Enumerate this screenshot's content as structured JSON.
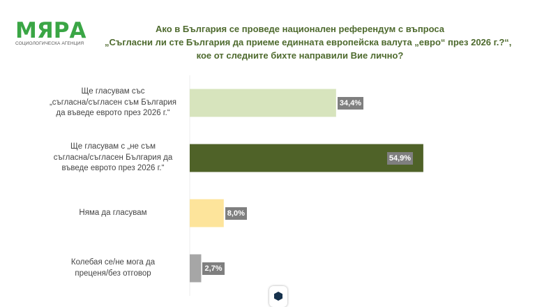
{
  "logo": {
    "name": "МЯРА",
    "subtitle": "СОЦИОЛОГИЧЕСКА АГЕНЦИЯ",
    "color": "#3aa645"
  },
  "title_lines": [
    "Ако в България се проведе национален референдум с въпроса",
    "„Съгласни ли сте България да приеме единната европейска валута „евро“ през 2026 г.?“,",
    "кое от следните бихте направили Вие лично?"
  ],
  "chart_data": {
    "type": "bar",
    "orientation": "horizontal",
    "categories": [
      [
        "Ще гласувам със",
        "„съгласна/съгласен съм България",
        "да въведе еврото през 2026 г.“"
      ],
      [
        "Ще гласувам с „не съм",
        "съгласна/съгласен България да",
        "въведе еврото през 2026 г.“"
      ],
      [
        "Няма да гласувам"
      ],
      [
        "Колебая се/не мога да",
        "преценя/без отговор"
      ]
    ],
    "values": [
      34.4,
      54.9,
      8.0,
      2.7
    ],
    "data_labels": [
      "34,4%",
      "54,9%",
      "8,0%",
      "2,7%"
    ],
    "colors": [
      "#d7e4bd",
      "#4f6228",
      "#fde49b",
      "#a6a6a6"
    ],
    "unit": "%",
    "xlim": [
      0,
      55
    ],
    "grid": false
  }
}
